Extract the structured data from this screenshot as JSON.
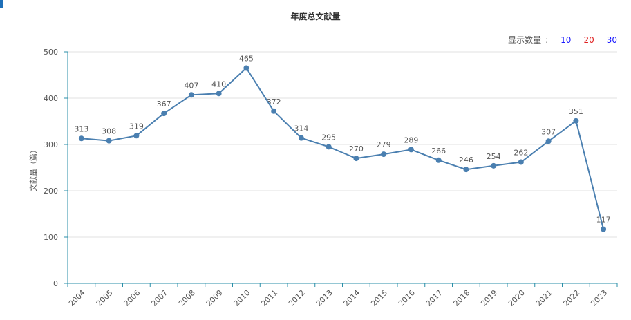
{
  "header": {
    "title": "年度总文献量"
  },
  "display_count": {
    "label": "显示数量",
    "colon": ":",
    "options": [
      {
        "value": "10",
        "color": "#1a1aff"
      },
      {
        "value": "20",
        "color": "#e02020"
      },
      {
        "value": "30",
        "color": "#1a1aff"
      }
    ]
  },
  "colors": {
    "line": "#4a7fb0",
    "axis": "#2b8fa8",
    "grid": "#e2e2e2",
    "accent": "#1e6fb8"
  },
  "chart_data": {
    "type": "line",
    "title": "年度总文献量",
    "ylabel": "文献量（篇）",
    "xlabel": "",
    "ylim": [
      0,
      500
    ],
    "yticks": [
      0,
      100,
      200,
      300,
      400,
      500
    ],
    "grid": true,
    "categories": [
      "2004",
      "2005",
      "2006",
      "2007",
      "2008",
      "2009",
      "2010",
      "2011",
      "2012",
      "2013",
      "2014",
      "2015",
      "2016",
      "2017",
      "2018",
      "2019",
      "2020",
      "2021",
      "2022",
      "2023"
    ],
    "series": [
      {
        "values": [
          313,
          308,
          319,
          367,
          407,
          410,
          465,
          372,
          314,
          295,
          270,
          279,
          289,
          266,
          246,
          254,
          262,
          307,
          351,
          117
        ]
      }
    ]
  }
}
